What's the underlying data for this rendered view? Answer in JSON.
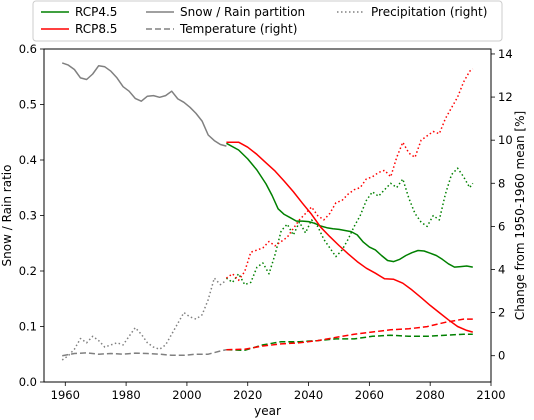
{
  "chart_data": {
    "type": "line",
    "xlabel": "year",
    "ylabel_left": "Snow / Rain ratio",
    "ylabel_right": "Change from 1950-1960 mean [%]",
    "xlim": [
      1953,
      2100
    ],
    "ylim_left": [
      0,
      0.6
    ],
    "ylim_right": [
      -1.22,
      14.23
    ],
    "xticks": [
      1960,
      1980,
      2000,
      2020,
      2040,
      2060,
      2080,
      2100
    ],
    "yticks_left": [
      0.0,
      0.1,
      0.2,
      0.3,
      0.4,
      0.5,
      0.6
    ],
    "yticks_right": [
      0,
      2,
      4,
      6,
      8,
      10,
      12,
      14
    ],
    "legend": {
      "position": "top",
      "entries": [
        {
          "label": "RCP4.5",
          "color": "#008000",
          "style": "solid"
        },
        {
          "label": "RCP8.5",
          "color": "#ff0000",
          "style": "solid"
        },
        {
          "label": "Snow / Rain partition",
          "color": "#808080",
          "style": "solid"
        },
        {
          "label": "Temperature (right)",
          "color": "#808080",
          "style": "dashed"
        },
        {
          "label": "Precipitation (right)",
          "color": "#808080",
          "style": "dotted"
        }
      ]
    },
    "series": [
      {
        "name": "Snow / Rain partition",
        "scenario": "historical",
        "axis": "left",
        "color": "#808080",
        "style": "solid",
        "x": [
          1959,
          1961,
          1963,
          1965,
          1967,
          1969,
          1971,
          1973,
          1975,
          1977,
          1979,
          1981,
          1983,
          1985,
          1987,
          1989,
          1991,
          1993,
          1995,
          1997,
          1999,
          2001,
          2003,
          2005,
          2007,
          2009,
          2011,
          2013
        ],
        "values": [
          0.575,
          0.571,
          0.563,
          0.548,
          0.545,
          0.555,
          0.57,
          0.568,
          0.56,
          0.548,
          0.532,
          0.524,
          0.511,
          0.506,
          0.515,
          0.516,
          0.513,
          0.516,
          0.524,
          0.51,
          0.504,
          0.495,
          0.484,
          0.47,
          0.445,
          0.435,
          0.428,
          0.425
        ]
      },
      {
        "name": "Snow / Rain partition",
        "scenario": "RCP4.5",
        "axis": "left",
        "color": "#008000",
        "style": "solid",
        "x": [
          2013,
          2017,
          2020,
          2023,
          2026,
          2028,
          2030,
          2032,
          2034,
          2036,
          2038,
          2040,
          2042,
          2044,
          2046,
          2048,
          2050,
          2052,
          2054,
          2056,
          2058,
          2060,
          2062,
          2064,
          2066,
          2068,
          2070,
          2072,
          2074,
          2076,
          2078,
          2080,
          2082,
          2084,
          2086,
          2088,
          2090,
          2092,
          2094
        ],
        "values": [
          0.43,
          0.418,
          0.402,
          0.382,
          0.357,
          0.336,
          0.312,
          0.302,
          0.296,
          0.29,
          0.29,
          0.289,
          0.286,
          0.281,
          0.278,
          0.276,
          0.275,
          0.273,
          0.271,
          0.265,
          0.252,
          0.243,
          0.238,
          0.228,
          0.219,
          0.217,
          0.221,
          0.228,
          0.233,
          0.237,
          0.236,
          0.232,
          0.228,
          0.221,
          0.213,
          0.207,
          0.208,
          0.209,
          0.207
        ]
      },
      {
        "name": "Snow / Rain partition",
        "scenario": "RCP8.5",
        "axis": "left",
        "color": "#ff0000",
        "style": "solid",
        "x": [
          2013,
          2017,
          2020,
          2023,
          2026,
          2029,
          2032,
          2035,
          2038,
          2041,
          2044,
          2047,
          2050,
          2053,
          2056,
          2059,
          2062,
          2065,
          2068,
          2071,
          2074,
          2077,
          2080,
          2083,
          2086,
          2089,
          2092,
          2094
        ],
        "values": [
          0.432,
          0.432,
          0.423,
          0.41,
          0.395,
          0.38,
          0.362,
          0.343,
          0.322,
          0.302,
          0.279,
          0.262,
          0.246,
          0.231,
          0.217,
          0.205,
          0.196,
          0.186,
          0.185,
          0.178,
          0.166,
          0.152,
          0.138,
          0.125,
          0.112,
          0.1,
          0.093,
          0.09
        ]
      },
      {
        "name": "Temperature (right)",
        "scenario": "historical",
        "axis": "right",
        "color": "#808080",
        "style": "dashed",
        "x": [
          1959,
          1963,
          1967,
          1971,
          1975,
          1979,
          1983,
          1987,
          1991,
          1995,
          1999,
          2003,
          2007,
          2011,
          2013
        ],
        "values": [
          0.0,
          0.1,
          0.13,
          0.07,
          0.1,
          0.07,
          0.12,
          0.1,
          0.07,
          0.02,
          0.02,
          0.07,
          0.07,
          0.22,
          0.28
        ]
      },
      {
        "name": "Temperature (right)",
        "scenario": "RCP4.5",
        "axis": "right",
        "color": "#008000",
        "style": "dashed",
        "x": [
          2013,
          2019,
          2025,
          2031,
          2037,
          2043,
          2049,
          2055,
          2061,
          2067,
          2073,
          2079,
          2085,
          2091,
          2094
        ],
        "values": [
          0.28,
          0.25,
          0.5,
          0.65,
          0.65,
          0.7,
          0.78,
          0.78,
          0.9,
          0.95,
          0.9,
          0.9,
          0.95,
          1.0,
          1.0
        ]
      },
      {
        "name": "Temperature (right)",
        "scenario": "RCP8.5",
        "axis": "right",
        "color": "#ff0000",
        "style": "dashed",
        "x": [
          2013,
          2019,
          2025,
          2031,
          2037,
          2043,
          2049,
          2055,
          2061,
          2067,
          2073,
          2079,
          2085,
          2091,
          2094
        ],
        "values": [
          0.28,
          0.3,
          0.45,
          0.55,
          0.6,
          0.7,
          0.85,
          1.0,
          1.1,
          1.2,
          1.25,
          1.35,
          1.55,
          1.7,
          1.7
        ]
      },
      {
        "name": "Precipitation (right)",
        "scenario": "historical",
        "axis": "right",
        "color": "#808080",
        "style": "dotted",
        "x": [
          1959,
          1961,
          1963,
          1965,
          1967,
          1969,
          1971,
          1973,
          1975,
          1977,
          1979,
          1981,
          1983,
          1985,
          1987,
          1989,
          1991,
          1993,
          1995,
          1997,
          1999,
          2001,
          2003,
          2005,
          2007,
          2009,
          2011,
          2013
        ],
        "values": [
          -0.2,
          0.0,
          0.3,
          0.8,
          0.6,
          0.9,
          0.7,
          0.4,
          0.5,
          0.6,
          0.5,
          0.9,
          1.3,
          1.0,
          0.6,
          0.4,
          0.3,
          0.5,
          1.0,
          1.5,
          2.0,
          1.8,
          1.7,
          1.9,
          2.6,
          3.6,
          3.3,
          3.5
        ]
      },
      {
        "name": "Precipitation (right)",
        "scenario": "RCP4.5",
        "axis": "right",
        "color": "#008000",
        "style": "dotted",
        "x": [
          2013,
          2015,
          2017,
          2019,
          2021,
          2023,
          2025,
          2027,
          2029,
          2031,
          2033,
          2035,
          2037,
          2039,
          2041,
          2043,
          2045,
          2047,
          2049,
          2051,
          2053,
          2055,
          2057,
          2059,
          2061,
          2063,
          2065,
          2067,
          2069,
          2071,
          2073,
          2075,
          2077,
          2079,
          2081,
          2083,
          2085,
          2087,
          2089,
          2091,
          2093,
          2094
        ],
        "values": [
          3.6,
          3.4,
          3.8,
          3.3,
          3.4,
          4.1,
          4.3,
          3.8,
          4.7,
          5.8,
          6.1,
          5.6,
          6.2,
          5.7,
          6.3,
          6.0,
          5.4,
          5.0,
          4.6,
          4.9,
          5.4,
          6.0,
          6.5,
          7.2,
          7.6,
          7.4,
          7.7,
          8.0,
          7.8,
          8.2,
          7.3,
          6.6,
          6.2,
          6.0,
          6.5,
          6.3,
          7.5,
          8.4,
          8.7,
          8.3,
          7.8,
          8.0
        ]
      },
      {
        "name": "Precipitation (right)",
        "scenario": "RCP8.5",
        "axis": "right",
        "color": "#ff0000",
        "style": "dotted",
        "x": [
          2013,
          2015,
          2017,
          2019,
          2021,
          2023,
          2025,
          2027,
          2029,
          2031,
          2033,
          2035,
          2037,
          2039,
          2041,
          2043,
          2045,
          2047,
          2049,
          2051,
          2053,
          2055,
          2057,
          2059,
          2061,
          2063,
          2065,
          2067,
          2069,
          2071,
          2073,
          2075,
          2077,
          2079,
          2081,
          2083,
          2085,
          2087,
          2089,
          2091,
          2093,
          2094
        ],
        "values": [
          3.6,
          3.8,
          3.5,
          3.9,
          4.8,
          4.9,
          5.0,
          5.3,
          5.1,
          5.3,
          5.5,
          5.9,
          6.3,
          6.6,
          6.9,
          6.5,
          6.3,
          6.6,
          7.1,
          7.2,
          7.5,
          7.7,
          7.8,
          8.2,
          8.3,
          8.5,
          8.6,
          8.3,
          9.2,
          9.9,
          9.4,
          9.2,
          10.0,
          10.2,
          10.4,
          10.3,
          11.0,
          11.5,
          12.0,
          12.7,
          13.2,
          13.3
        ]
      }
    ]
  }
}
